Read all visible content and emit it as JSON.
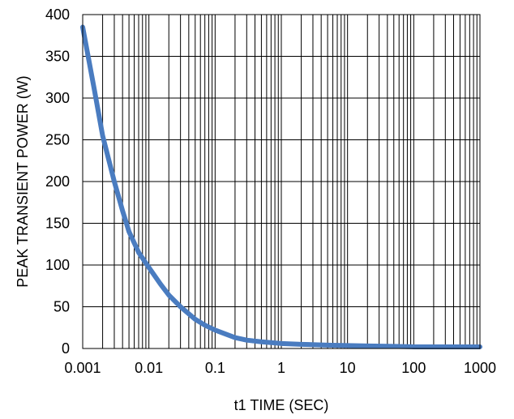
{
  "chart_data": {
    "type": "line",
    "title": "",
    "xlabel": "t1 TIME (SEC)",
    "ylabel": "PEAK TRANSIENT POWER (W)",
    "x_scale": "log",
    "xlim": [
      0.001,
      1000
    ],
    "ylim": [
      0,
      400
    ],
    "x_ticks": [
      0.001,
      0.01,
      0.1,
      1,
      10,
      100,
      1000
    ],
    "x_tick_labels": [
      "0.001",
      "0.01",
      "0.1",
      "1",
      "10",
      "100",
      "1000"
    ],
    "y_ticks": [
      0,
      50,
      100,
      150,
      200,
      250,
      300,
      350,
      400
    ],
    "y_tick_labels": [
      "0",
      "50",
      "100",
      "150",
      "200",
      "250",
      "300",
      "350",
      "400"
    ],
    "grid": true,
    "series": [
      {
        "color": "#4a7cc0",
        "x": [
          0.001,
          0.0015,
          0.002,
          0.003,
          0.004,
          0.005,
          0.007,
          0.01,
          0.015,
          0.02,
          0.03,
          0.05,
          0.07,
          0.1,
          0.2,
          0.3,
          0.5,
          1,
          2,
          5,
          10,
          20,
          50,
          100,
          200,
          500,
          1000
        ],
        "y": [
          385,
          310,
          255,
          200,
          165,
          140,
          115,
          97,
          77,
          64,
          50,
          35,
          28,
          22,
          13,
          10,
          8,
          6,
          5,
          4,
          3.5,
          3,
          2.5,
          2,
          2,
          2,
          2
        ]
      }
    ]
  }
}
